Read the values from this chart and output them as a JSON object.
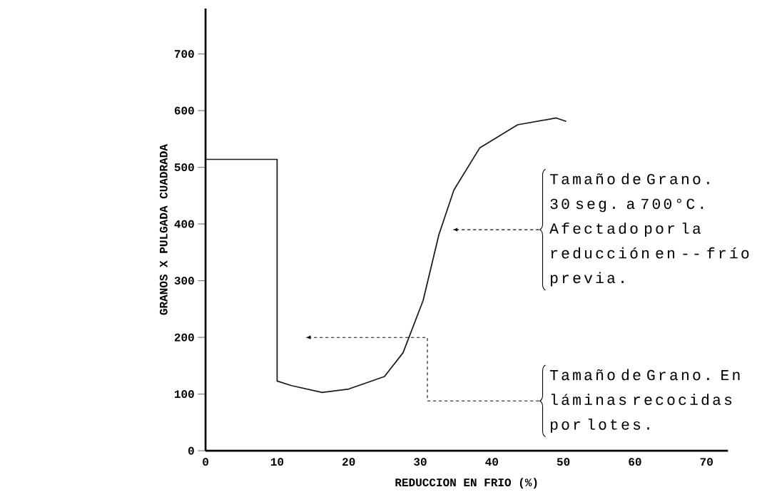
{
  "chart_data": {
    "type": "line",
    "xlabel": "REDUCCION EN FRIO (%)",
    "ylabel": "GRANOS X PULGADA CUADRADA",
    "xlim": [
      0,
      73
    ],
    "ylim": [
      0,
      780
    ],
    "xticks": [
      0,
      10,
      20,
      30,
      40,
      50,
      60,
      70
    ],
    "yticks": [
      0,
      100,
      200,
      300,
      400,
      500,
      600,
      700
    ],
    "grid": false,
    "marker": "none",
    "line_style": "solid",
    "series": [
      {
        "color": "#1a1a1a",
        "x": [
          0,
          10,
          10,
          12,
          16.3,
          20,
          25,
          27.6,
          30.4,
          32.6,
          34.7,
          38.3,
          43.6,
          49,
          50.4
        ],
        "values": [
          514,
          514,
          123,
          115,
          103,
          109,
          131,
          173,
          265,
          381,
          460,
          534,
          575,
          587,
          581
        ]
      }
    ],
    "annotations": [
      "Tamaño de Grano. 30 seg. a 700°C. Afectado por la reducción en -- frío previa.",
      "Tamaño de Grano. En láminas recocidas por lotes."
    ]
  }
}
